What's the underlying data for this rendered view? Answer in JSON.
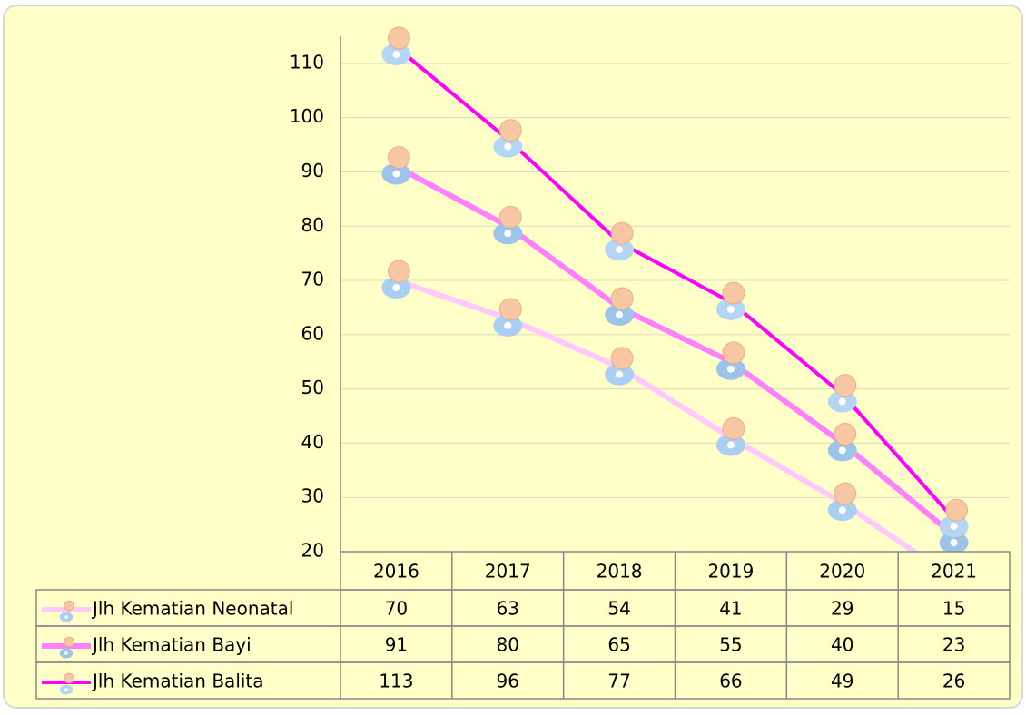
{
  "chart_data": {
    "type": "line",
    "categories": [
      "2016",
      "2017",
      "2018",
      "2019",
      "2020",
      "2021"
    ],
    "series": [
      {
        "name": "Jlh Kematian Neonatal",
        "color": "#ffc8ff",
        "values": [
          70,
          63,
          54,
          41,
          29,
          15
        ]
      },
      {
        "name": "Jlh Kematian Bayi",
        "color": "#ff80ff",
        "values": [
          91,
          80,
          65,
          55,
          40,
          23
        ]
      },
      {
        "name": "Jlh Kematian Balita",
        "color": "#ff00ff",
        "values": [
          113,
          96,
          77,
          66,
          49,
          26
        ]
      }
    ],
    "ylim": [
      20,
      115
    ],
    "yticks": [
      20,
      30,
      40,
      50,
      60,
      70,
      80,
      90,
      100,
      110
    ],
    "grid": true
  }
}
